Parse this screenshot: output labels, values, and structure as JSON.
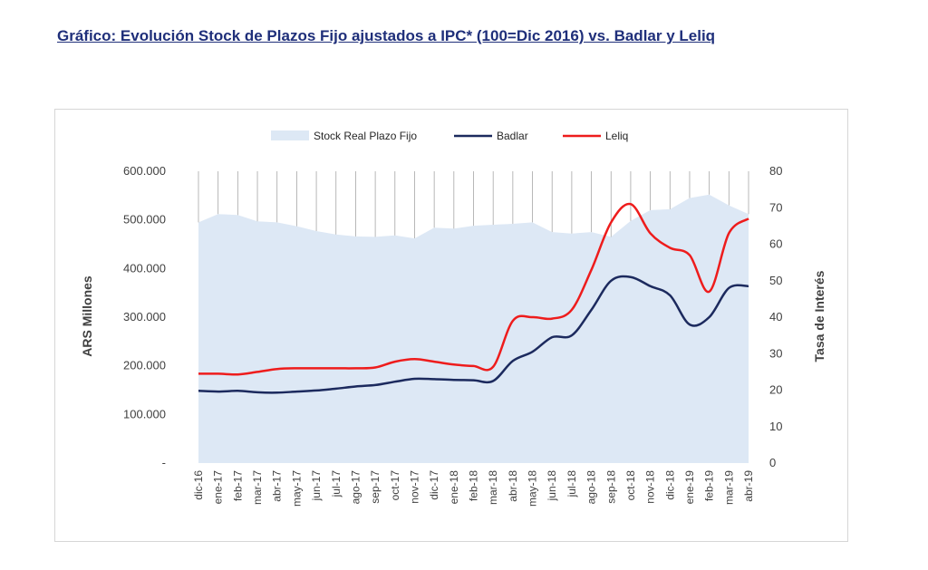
{
  "page": {
    "title": "Gráfico: Evolución Stock de Plazos Fijo ajustados a IPC* (100=Dic 2016) vs. Badlar y Leliq"
  },
  "colors": {
    "area": "#dde8f5",
    "badlar": "#1c2a5e",
    "leliq": "#ee1c1c",
    "grid": "#a6a6a6",
    "title": "#1f2f7a"
  },
  "chart_data": {
    "type": "line",
    "title": "",
    "ylabel_left": "ARS Millones",
    "ylabel_right": "Tasa de Interés",
    "ylim_left": [
      0,
      600000
    ],
    "ylim_right": [
      0,
      80
    ],
    "yticks_left": [
      "-",
      "100.000",
      "200.000",
      "300.000",
      "400.000",
      "500.000",
      "600.000"
    ],
    "yticks_right": [
      "0",
      "10",
      "20",
      "30",
      "40",
      "50",
      "60",
      "70",
      "80"
    ],
    "legend_position": "top",
    "x": [
      "dic-16",
      "ene-17",
      "feb-17",
      "mar-17",
      "abr-17",
      "may-17",
      "jun-17",
      "jul-17",
      "ago-17",
      "sep-17",
      "oct-17",
      "nov-17",
      "dic-17",
      "ene-18",
      "feb-18",
      "mar-18",
      "abr-18",
      "may-18",
      "jun-18",
      "jul-18",
      "ago-18",
      "sep-18",
      "oct-18",
      "nov-18",
      "dic-18",
      "ene-19",
      "feb-19",
      "mar-19",
      "abr-19"
    ],
    "series": [
      {
        "name": "Stock Real Plazo Fijo",
        "kind": "area",
        "axis": "left",
        "values": [
          495000,
          512000,
          510000,
          497000,
          495000,
          487000,
          477000,
          470000,
          466000,
          465000,
          468000,
          462000,
          484000,
          482000,
          488000,
          490000,
          492000,
          495000,
          475000,
          472000,
          475000,
          465000,
          498000,
          520000,
          522000,
          545000,
          552000,
          530000,
          512000
        ]
      },
      {
        "name": "Badlar",
        "kind": "line",
        "axis": "right",
        "values": [
          19.8,
          19.6,
          19.8,
          19.4,
          19.3,
          19.6,
          19.9,
          20.4,
          21.0,
          21.4,
          22.3,
          23.1,
          23.0,
          22.8,
          22.7,
          22.5,
          28.0,
          30.5,
          34.5,
          35.0,
          42.0,
          50.0,
          51.0,
          48.5,
          46.0,
          38.0,
          40.0,
          48.0,
          48.5
        ]
      },
      {
        "name": "Leliq",
        "kind": "line",
        "axis": "right",
        "values": [
          24.5,
          24.5,
          24.3,
          25.0,
          25.8,
          26.0,
          26.0,
          26.0,
          26.0,
          26.2,
          27.8,
          28.5,
          27.8,
          27.0,
          26.6,
          26.4,
          39.0,
          40.0,
          39.6,
          42.0,
          53.0,
          66.0,
          71.0,
          63.0,
          59.0,
          57.0,
          47.0,
          63.0,
          67.0
        ]
      }
    ]
  }
}
